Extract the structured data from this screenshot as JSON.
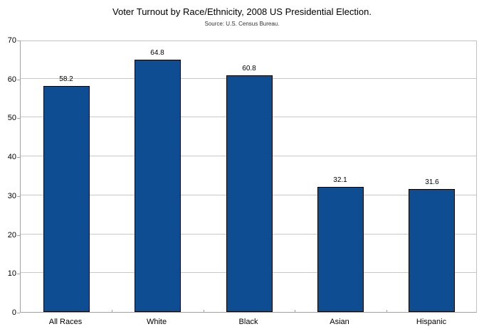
{
  "chart_data": {
    "type": "bar",
    "title": "Voter Turnout by Race/Ethnicity, 2008 US Presidential Election.",
    "subtitle": "Source: U.S. Census Bureau.",
    "categories": [
      "All Races",
      "White",
      "Black",
      "Asian",
      "Hispanic"
    ],
    "values": [
      58.2,
      64.8,
      60.8,
      32.1,
      31.6
    ],
    "value_labels": [
      "58.2",
      "64.8",
      "60.8",
      "32.1",
      "31.6"
    ],
    "xlabel": "",
    "ylabel": "",
    "ylim": [
      0,
      70
    ],
    "yticks": [
      0,
      10,
      20,
      30,
      40,
      50,
      60,
      70
    ],
    "grid": "horizontal",
    "legend_position": "none",
    "bar_color": "#0e4d92",
    "bar_border_color": "#000000",
    "grid_color": "#c8c8c8",
    "axis_color": "#a0a0a0"
  }
}
